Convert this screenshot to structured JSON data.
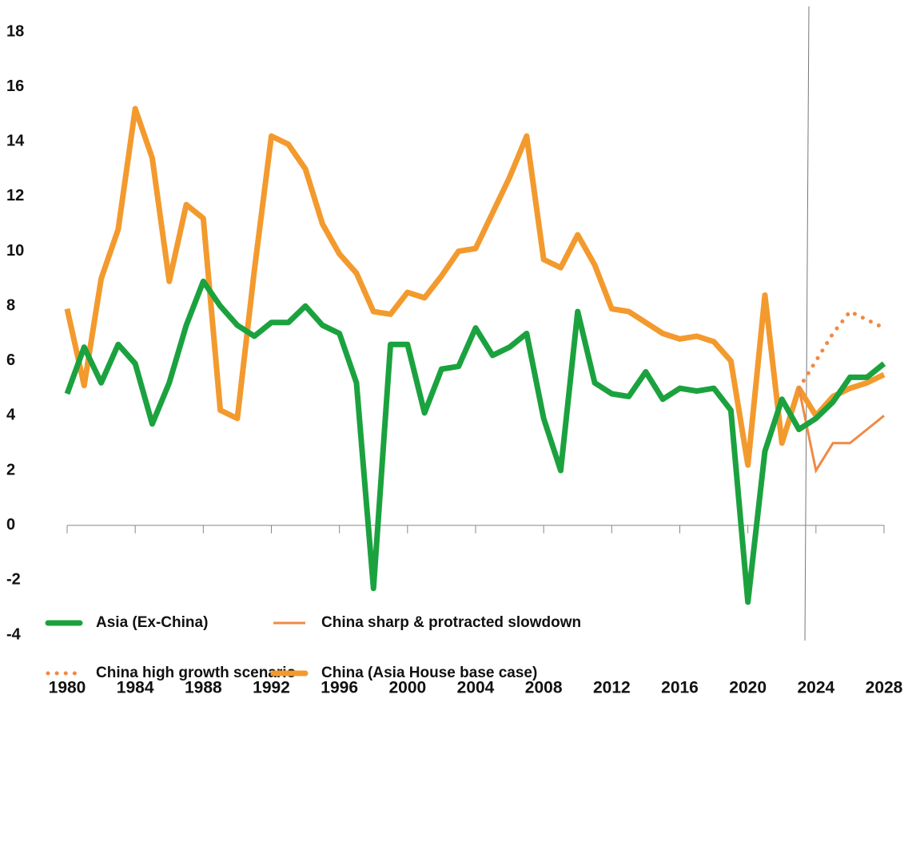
{
  "chart_data": {
    "type": "line",
    "x": [
      1980,
      1981,
      1982,
      1983,
      1984,
      1985,
      1986,
      1987,
      1988,
      1989,
      1990,
      1991,
      1992,
      1993,
      1994,
      1995,
      1996,
      1997,
      1998,
      1999,
      2000,
      2001,
      2002,
      2003,
      2004,
      2005,
      2006,
      2007,
      2008,
      2009,
      2010,
      2011,
      2012,
      2013,
      2014,
      2015,
      2016,
      2017,
      2018,
      2019,
      2020,
      2021,
      2022,
      2023,
      2024,
      2025,
      2026,
      2027,
      2028
    ],
    "series": [
      {
        "name": "Asia (Ex-China)",
        "color": "#1ba23f",
        "style": "solid",
        "values": [
          4.8,
          6.5,
          5.2,
          6.6,
          5.9,
          3.7,
          5.2,
          7.3,
          8.9,
          8.0,
          7.3,
          6.9,
          7.4,
          7.4,
          8.0,
          7.3,
          7.0,
          5.2,
          -2.3,
          6.6,
          6.6,
          4.1,
          5.7,
          5.8,
          7.2,
          6.2,
          6.5,
          7.0,
          3.9,
          2.0,
          7.8,
          5.2,
          4.8,
          4.7,
          5.6,
          4.6,
          5.0,
          4.9,
          5.0,
          4.2,
          -2.8,
          2.7,
          4.6,
          3.5,
          3.9,
          4.5,
          5.4,
          5.4,
          5.9
        ]
      },
      {
        "name": "China sharp & protracted slowdown",
        "color": "#f08a45",
        "style": "thin",
        "values": [
          null,
          null,
          null,
          null,
          null,
          null,
          null,
          null,
          null,
          null,
          null,
          null,
          null,
          null,
          null,
          null,
          null,
          null,
          null,
          null,
          null,
          null,
          null,
          null,
          null,
          null,
          null,
          null,
          null,
          null,
          null,
          null,
          null,
          null,
          null,
          null,
          null,
          null,
          null,
          null,
          null,
          null,
          null,
          5.0,
          2.0,
          3.0,
          3.0,
          3.5,
          4.0
        ]
      },
      {
        "name": "China high growth scenario",
        "color": "#f08a45",
        "style": "dotted",
        "values": [
          null,
          null,
          null,
          null,
          null,
          null,
          null,
          null,
          null,
          null,
          null,
          null,
          null,
          null,
          null,
          null,
          null,
          null,
          null,
          null,
          null,
          null,
          null,
          null,
          null,
          null,
          null,
          null,
          null,
          null,
          null,
          null,
          null,
          null,
          null,
          null,
          null,
          null,
          null,
          null,
          null,
          null,
          null,
          5.0,
          6.0,
          7.0,
          7.8,
          7.5,
          7.2
        ]
      },
      {
        "name": "China (Asia House base case)",
        "color": "#f39a2e",
        "style": "solid",
        "values": [
          7.9,
          5.1,
          9.0,
          10.8,
          15.2,
          13.4,
          8.9,
          11.7,
          11.2,
          4.2,
          3.9,
          9.3,
          14.2,
          13.9,
          13.0,
          11.0,
          9.9,
          9.2,
          7.8,
          7.7,
          8.5,
          8.3,
          9.1,
          10.0,
          10.1,
          11.4,
          12.7,
          14.2,
          9.7,
          9.4,
          10.6,
          9.5,
          7.9,
          7.8,
          7.4,
          7.0,
          6.8,
          6.9,
          6.7,
          6.0,
          2.2,
          8.4,
          3.0,
          5.0,
          4.0,
          4.7,
          5.0,
          5.2,
          5.5
        ]
      }
    ],
    "xlim": [
      1980,
      2028
    ],
    "xticks": [
      1980,
      1984,
      1988,
      1992,
      1996,
      2000,
      2004,
      2008,
      2012,
      2016,
      2020,
      2024,
      2028
    ],
    "ylim": [
      -4,
      18
    ],
    "yticks": [
      -4,
      -2,
      0,
      2,
      4,
      6,
      8,
      10,
      12,
      14,
      16,
      18
    ],
    "grid": false
  }
}
